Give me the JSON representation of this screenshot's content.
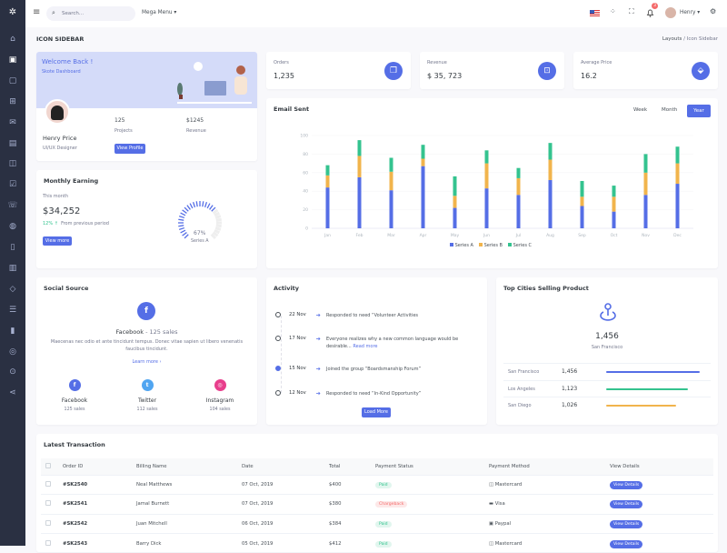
{
  "colors": {
    "primary": "#556ee6",
    "success": "#34c38f",
    "warning": "#f1b44c",
    "danger": "#f46a6a",
    "sidebar": "#2a3042"
  },
  "sidebar": {
    "logo": "logo-icon",
    "items": [
      "home-icon",
      "layout-icon",
      "calendar-icon",
      "store-icon",
      "mail-icon",
      "invoice-icon",
      "briefcase-icon",
      "task-icon",
      "contacts-icon",
      "user-icon",
      "file-icon",
      "receipt-icon",
      "eraser-icon",
      "list-icon",
      "chart-icon",
      "support-icon",
      "map-pin-icon",
      "share-icon"
    ]
  },
  "topbar": {
    "search_placeholder": "Search...",
    "mega_menu": "Mega Menu",
    "notification_count": "3",
    "user": "Henry"
  },
  "page": {
    "title": "ICON SIDEBAR",
    "breadcrumb": [
      "Layouts",
      "Icon Sidebar"
    ]
  },
  "welcome": {
    "title": "Welcome Back !",
    "subtitle": "Skote Dashboard",
    "name": "Henry Price",
    "role": "UI/UX Designer",
    "projects_value": "125",
    "projects_label": "Projects",
    "revenue_value": "$1245",
    "revenue_label": "Revenue",
    "button": "View Profile"
  },
  "stats": [
    {
      "label": "Orders",
      "value": "1,235",
      "icon": "copy-icon"
    },
    {
      "label": "Revenue",
      "value": "$ 35, 723",
      "icon": "archive-icon"
    },
    {
      "label": "Average Price",
      "value": "16.2",
      "icon": "tag-icon"
    }
  ],
  "earning": {
    "title": "Monthly Earning",
    "period": "This month",
    "amount": "$34,252",
    "change": "12%",
    "change_label": "From previous period",
    "button": "View more",
    "gauge_value": 67,
    "gauge_label": "67%",
    "gauge_series": "Series A"
  },
  "chart_data": {
    "type": "bar",
    "stacked": true,
    "title": "Email Sent",
    "tabs": [
      "Week",
      "Month",
      "Year"
    ],
    "active_tab": "Year",
    "categories": [
      "Jan",
      "Feb",
      "Mar",
      "Apr",
      "May",
      "Jun",
      "Jul",
      "Aug",
      "Sep",
      "Oct",
      "Nov",
      "Dec"
    ],
    "ylim": [
      0,
      100
    ],
    "yticks": [
      0,
      20,
      40,
      60,
      80,
      100
    ],
    "grid": true,
    "legend": "bottom",
    "series": [
      {
        "name": "Series A",
        "color": "#556ee6",
        "values": [
          44,
          55,
          41,
          67,
          22,
          43,
          36,
          52,
          24,
          18,
          36,
          48
        ]
      },
      {
        "name": "Series B",
        "color": "#f1b44c",
        "values": [
          13,
          23,
          20,
          8,
          13,
          27,
          18,
          22,
          10,
          16,
          24,
          22
        ]
      },
      {
        "name": "Series C",
        "color": "#34c38f",
        "values": [
          11,
          17,
          15,
          15,
          21,
          14,
          11,
          18,
          17,
          12,
          20,
          18
        ]
      }
    ]
  },
  "social": {
    "title": "Social Source",
    "headline_name": "Facebook",
    "headline_sales": " - 125 sales",
    "text": "Maecenas nec odio et ante tincidunt tempus. Donec vitae sapien ut libero venenatis faucibus tincidunt.",
    "link": "Learn more",
    "items": [
      {
        "name": "Facebook",
        "sales": "125 sales",
        "color": "#556ee6",
        "glyph": "f"
      },
      {
        "name": "Twitter",
        "sales": "112 sales",
        "color": "#50a5f1",
        "glyph": "t"
      },
      {
        "name": "Instagram",
        "sales": "104 sales",
        "color": "#e83e8c",
        "glyph": "◎"
      }
    ]
  },
  "activity": {
    "title": "Activity",
    "items": [
      {
        "date": "22 Nov",
        "text": "Responded to need “Volunteer Activities"
      },
      {
        "date": "17 Nov",
        "text": "Everyone realizes why a new common language would be desirable...",
        "link": "Read more"
      },
      {
        "date": "15 Nov",
        "text": "Joined the group “Boardsmanship Forum”"
      },
      {
        "date": "12 Nov",
        "text": "Responded to need “In-Kind Opportunity”"
      }
    ],
    "button": "Load More"
  },
  "cities": {
    "title": "Top Cities Selling Product",
    "top_value": "1,456",
    "top_city": "San Francisco",
    "rows": [
      {
        "city": "San Francisco",
        "value": "1,456",
        "percent": 94,
        "color": "#556ee6"
      },
      {
        "city": "Los Angeles",
        "value": "1,123",
        "percent": 82,
        "color": "#34c38f"
      },
      {
        "city": "San Diego",
        "value": "1,026",
        "percent": 70,
        "color": "#f1b44c"
      }
    ]
  },
  "transactions": {
    "title": "Latest Transaction",
    "headers": [
      "Order ID",
      "Billing Name",
      "Date",
      "Total",
      "Payment Status",
      "Payment Method",
      "View Details"
    ],
    "rows": [
      {
        "id": "#SK2540",
        "name": "Neal Matthews",
        "date": "07 Oct, 2019",
        "total": "$400",
        "status": "Paid",
        "method": "Mastercard"
      },
      {
        "id": "#SK2541",
        "name": "Jamal Burnett",
        "date": "07 Oct, 2019",
        "total": "$380",
        "status": "Chargeback",
        "method": "Visa"
      },
      {
        "id": "#SK2542",
        "name": "Juan Mitchell",
        "date": "06 Oct, 2019",
        "total": "$384",
        "status": "Paid",
        "method": "Paypal"
      },
      {
        "id": "#SK2543",
        "name": "Barry Dick",
        "date": "05 Oct, 2019",
        "total": "$412",
        "status": "Paid",
        "method": "Mastercard"
      }
    ],
    "button": "View Details"
  }
}
